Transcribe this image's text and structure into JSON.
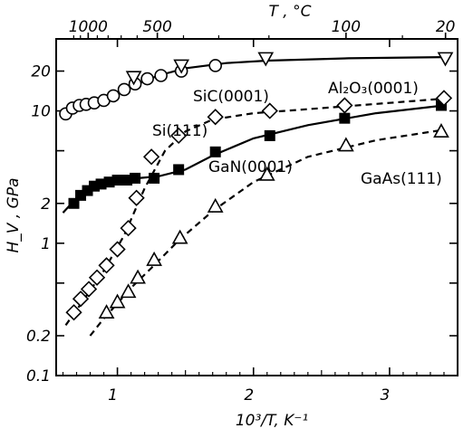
{
  "chart_data": {
    "type": "scatter",
    "title": "",
    "xlabel": "10³/T, K⁻¹",
    "ylabel": "H_V , GPa",
    "top_xlabel": "T , °C",
    "x_scale": "linear",
    "y_scale": "log",
    "xlim": [
      0.55,
      3.5
    ],
    "ylim": [
      0.1,
      35
    ],
    "x_ticks": [
      {
        "value": 1,
        "label": "1"
      },
      {
        "value": 2,
        "label": "2"
      },
      {
        "value": 3,
        "label": "3"
      }
    ],
    "y_ticks": [
      {
        "value": 0.1,
        "label": "0.1"
      },
      {
        "value": 0.2,
        "label": "0.2"
      },
      {
        "value": 0.5,
        "label": ""
      },
      {
        "value": 1,
        "label": "1"
      },
      {
        "value": 2,
        "label": "2"
      },
      {
        "value": 5,
        "label": ""
      },
      {
        "value": 10,
        "label": "10"
      },
      {
        "value": 20,
        "label": "20"
      }
    ],
    "top_ticks": [
      {
        "value": 1000,
        "label": "1000"
      },
      {
        "value": 500,
        "label": "500"
      },
      {
        "value": 100,
        "label": "100"
      },
      {
        "value": 20,
        "label": "20"
      }
    ],
    "grid": false,
    "legend": "none",
    "series": [
      {
        "name": "SiC(0001)",
        "marker": "open-circle",
        "line": "solid",
        "x": [
          0.62,
          0.67,
          0.72,
          0.77,
          0.83,
          0.9,
          0.97,
          1.05,
          1.13,
          1.22,
          1.32,
          1.47,
          1.72
        ],
        "y": [
          9.5,
          10.5,
          11.0,
          11.2,
          11.5,
          12.0,
          13.0,
          14.5,
          16.0,
          17.5,
          18.5,
          20.0,
          22.0
        ],
        "fit_x": [
          0.6,
          0.7,
          0.85,
          1.0,
          1.15,
          1.3,
          1.5,
          1.8,
          2.1,
          2.7,
          3.4
        ],
        "fit_y": [
          9.5,
          10.8,
          12.0,
          13.8,
          16.0,
          18.5,
          21.0,
          23.0,
          24.0,
          25.0,
          25.5
        ]
      },
      {
        "name": "Al₂O₃(0001)",
        "marker": "open-triangle-down",
        "line": "none",
        "x": [
          1.12,
          1.47,
          2.09,
          3.41
        ],
        "y": [
          18.0,
          22.0,
          25.0,
          25.0
        ]
      },
      {
        "name": "GaN(0001)",
        "marker": "filled-square",
        "line": "solid",
        "x": [
          0.68,
          0.73,
          0.78,
          0.83,
          0.88,
          0.94,
          1.0,
          1.07,
          1.13,
          1.27,
          1.45,
          1.72,
          2.12,
          2.67,
          3.38
        ],
        "y": [
          2.0,
          2.3,
          2.5,
          2.7,
          2.8,
          2.9,
          3.0,
          3.0,
          3.1,
          3.1,
          3.6,
          4.9,
          6.5,
          8.8,
          11.0
        ],
        "fit_x": [
          0.6,
          0.7,
          0.8,
          0.9,
          1.0,
          1.15,
          1.3,
          1.5,
          1.7,
          2.0,
          2.4,
          2.9,
          3.4
        ],
        "fit_y": [
          1.7,
          2.2,
          2.6,
          2.85,
          3.0,
          3.1,
          3.2,
          3.6,
          4.6,
          6.2,
          7.8,
          9.6,
          11.0
        ]
      },
      {
        "name": "Si(111)",
        "marker": "open-diamond",
        "line": "dashed",
        "x": [
          0.68,
          0.73,
          0.79,
          0.85,
          0.92,
          1.0,
          1.08,
          1.14,
          1.25,
          1.45,
          1.72,
          2.12,
          2.67,
          3.4
        ],
        "y": [
          0.3,
          0.38,
          0.45,
          0.55,
          0.68,
          0.9,
          1.3,
          2.2,
          4.5,
          6.5,
          9.0,
          10.0,
          11.0,
          12.5
        ],
        "fit_x": [
          0.62,
          0.75,
          0.9,
          1.05,
          1.2,
          1.35,
          1.5,
          1.7,
          2.0,
          2.5,
          3.0,
          3.45
        ],
        "fit_y": [
          0.24,
          0.37,
          0.62,
          1.15,
          2.6,
          5.0,
          7.0,
          8.6,
          9.6,
          10.5,
          11.5,
          12.5
        ]
      },
      {
        "name": "GaAs(111)",
        "marker": "open-triangle-up",
        "line": "dashed",
        "x": [
          0.92,
          1.0,
          1.08,
          1.15,
          1.27,
          1.46,
          1.72,
          2.1,
          2.68,
          3.38
        ],
        "y": [
          0.3,
          0.36,
          0.43,
          0.55,
          0.75,
          1.1,
          1.9,
          3.3,
          5.5,
          7.0
        ],
        "fit_x": [
          0.8,
          0.9,
          1.0,
          1.1,
          1.25,
          1.45,
          1.7,
          2.0,
          2.4,
          2.9,
          3.4
        ],
        "fit_y": [
          0.2,
          0.27,
          0.35,
          0.46,
          0.65,
          1.05,
          1.75,
          2.9,
          4.5,
          6.0,
          7.2
        ]
      }
    ],
    "annotations": [
      {
        "text": "SiC(0001)",
        "series": "SiC(0001)"
      },
      {
        "text": "Al₂O₃(0001)",
        "series": "Al₂O₃(0001)"
      },
      {
        "text": "Si(111)",
        "series": "Si(111)"
      },
      {
        "text": "GaN(0001)",
        "series": "GaN(0001)"
      },
      {
        "text": "GaAs(111)",
        "series": "GaAs(111)"
      }
    ]
  }
}
